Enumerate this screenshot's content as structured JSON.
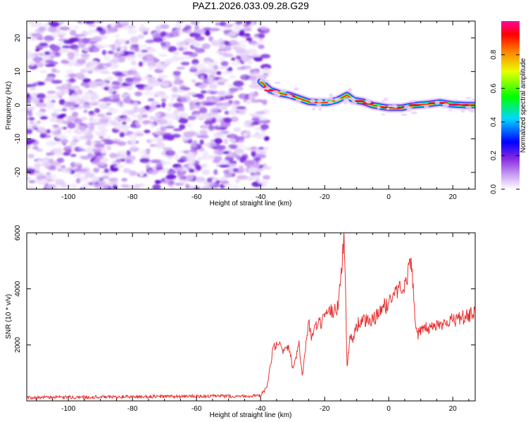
{
  "title": "PAZ1.2026.033.09.28.G29",
  "chart_data": [
    {
      "type": "heatmap",
      "title": "PAZ1.2026.033.09.28.G29",
      "xlabel": "Height of straight line (km)",
      "ylabel": "Frequency (Hz)",
      "xlim": [
        -113,
        27
      ],
      "ylim": [
        -25,
        25
      ],
      "xticks": [
        -100,
        -80,
        -60,
        -40,
        -20,
        0,
        20
      ],
      "yticks": [
        -20,
        -10,
        0,
        10,
        20
      ],
      "noise_region_x": [
        -113,
        -38
      ],
      "signal_ridge": {
        "x": [
          -40,
          -37,
          -34,
          -31,
          -28,
          -25,
          -22,
          -19,
          -16,
          -13,
          -11,
          -8,
          -5,
          -2,
          0,
          4,
          8,
          12,
          16,
          20,
          24,
          27
        ],
        "y": [
          7,
          4.5,
          3.5,
          3,
          2,
          1,
          0.8,
          0.8,
          1.5,
          3,
          1.5,
          1,
          0,
          -0.5,
          -0.8,
          -0.8,
          0,
          0.3,
          0.8,
          0.2,
          0,
          0
        ]
      },
      "colorbar": {
        "label": "Normalized spectral amplitude",
        "range": [
          0,
          1
        ],
        "ticks": [
          0.0,
          0.2,
          0.4,
          0.6,
          0.8
        ],
        "colors": [
          "#e0c8f8",
          "#8a2be2",
          "#0000ff",
          "#00d8ff",
          "#00ff00",
          "#e8ff00",
          "#ff8000",
          "#ff0000",
          "#ff00a0"
        ]
      }
    },
    {
      "type": "line",
      "xlabel": "Height of straight line (km)",
      "ylabel": "SNR (10 * v/v)",
      "xlim": [
        -113,
        27
      ],
      "ylim": [
        0,
        6000
      ],
      "xticks": [
        -100,
        -80,
        -60,
        -40,
        -20,
        0,
        20
      ],
      "yticks": [
        2000,
        4000,
        6000
      ],
      "series": [
        {
          "name": "SNR",
          "color": "#e83030",
          "x": [
            -113,
            -40,
            -38,
            -36,
            -34,
            -33,
            -31,
            -30,
            -28,
            -27,
            -26,
            -25,
            -24,
            -23,
            -22,
            -20,
            -18,
            -16,
            -15,
            -14,
            -13.5,
            -13,
            -12,
            -11,
            -10,
            -8,
            -6,
            -4,
            -2,
            0,
            2,
            4,
            6,
            7,
            8,
            9,
            12,
            15,
            18,
            21,
            24,
            27
          ],
          "y": [
            120,
            180,
            500,
            1900,
            2000,
            1700,
            1900,
            1200,
            2000,
            900,
            1800,
            2900,
            2200,
            2600,
            2700,
            2900,
            3200,
            3300,
            4400,
            6000,
            4000,
            1200,
            2400,
            2200,
            2700,
            2900,
            2800,
            3000,
            3300,
            3500,
            3900,
            4000,
            4500,
            5200,
            3200,
            2400,
            2600,
            2700,
            2850,
            2900,
            3000,
            3100
          ]
        }
      ]
    }
  ]
}
